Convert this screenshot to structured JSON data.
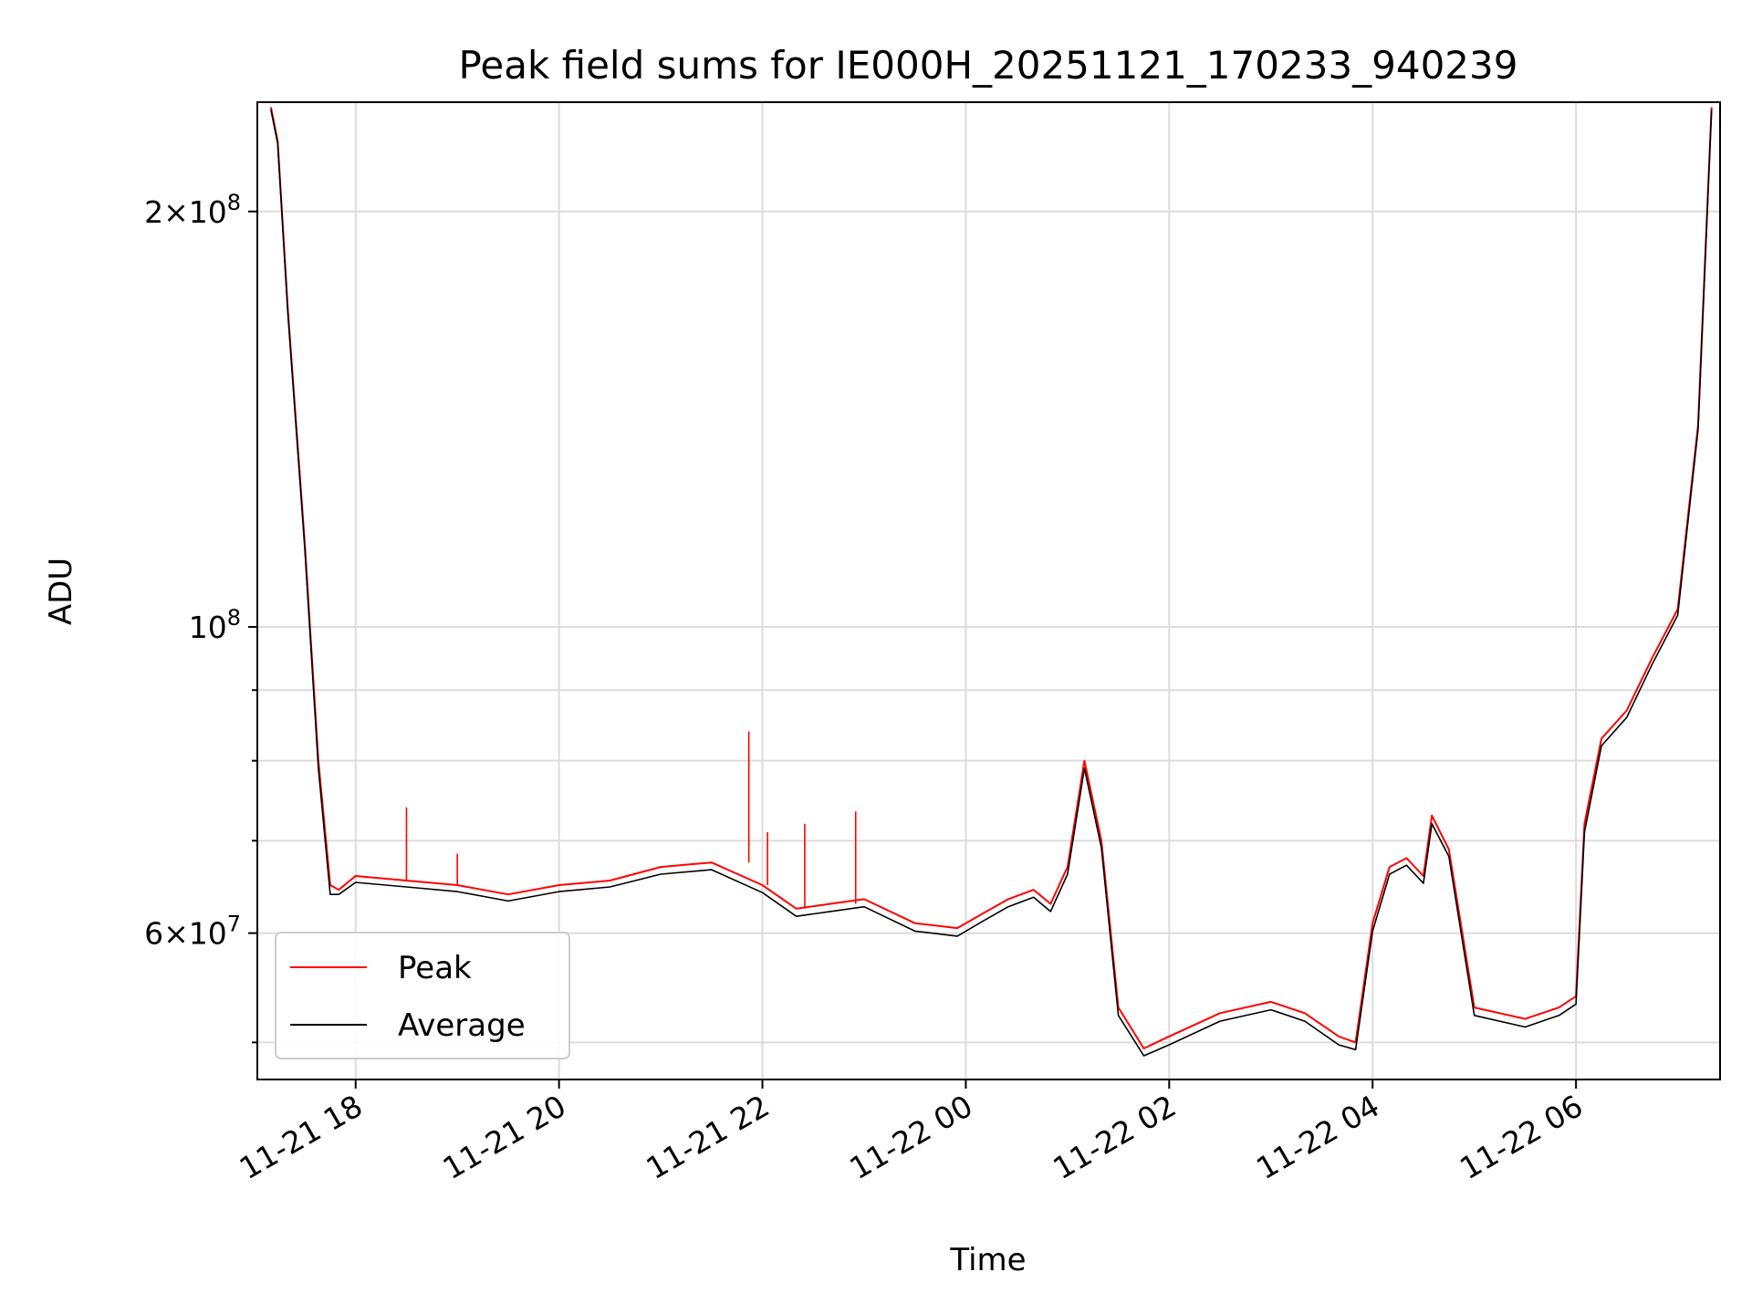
{
  "chart_data": {
    "type": "line",
    "title": "Peak field sums for IE000H_20251121_170233_940239",
    "xlabel": "Time",
    "ylabel": "ADU",
    "x_tick_labels": [
      "11-21 18",
      "11-21 20",
      "11-21 22",
      "11-22 00",
      "11-22 02",
      "11-22 04",
      "11-22 06"
    ],
    "x_ticks": [
      "2025-11-21 18:00",
      "2025-11-21 20:00",
      "2025-11-21 22:00",
      "2025-11-22 00:00",
      "2025-11-22 02:00",
      "2025-11-22 04:00",
      "2025-11-22 06:00"
    ],
    "xlim": [
      "2025-11-21 17:02",
      "2025-11-22 07:25"
    ],
    "yscale": "log",
    "ylim": [
      47000000,
      240000000
    ],
    "y_major_ticks": [
      {
        "value": 200000000,
        "mantissa": "2",
        "exponent": "8"
      },
      {
        "value": 100000000,
        "mantissa": "",
        "exponent": "8"
      },
      {
        "value": 60000000,
        "mantissa": "6",
        "exponent": "7"
      }
    ],
    "y_minor_ticks": [
      50000000,
      70000000,
      80000000,
      90000000
    ],
    "grid": true,
    "legend_position": "lower left",
    "series": [
      {
        "name": "Peak",
        "color": "#ff0000",
        "x": [
          "2025-11-21 17:10",
          "2025-11-21 17:14",
          "2025-11-21 17:20",
          "2025-11-21 17:30",
          "2025-11-21 17:38",
          "2025-11-21 17:45",
          "2025-11-21 17:50",
          "2025-11-21 18:00",
          "2025-11-21 18:30",
          "2025-11-21 19:00",
          "2025-11-21 19:30",
          "2025-11-21 20:00",
          "2025-11-21 20:30",
          "2025-11-21 21:00",
          "2025-11-21 21:30",
          "2025-11-21 22:00",
          "2025-11-21 22:20",
          "2025-11-21 22:40",
          "2025-11-21 23:00",
          "2025-11-21 23:30",
          "2025-11-21 23:55",
          "2025-11-22 00:10",
          "2025-11-22 00:25",
          "2025-11-22 00:40",
          "2025-11-22 00:50",
          "2025-11-22 01:00",
          "2025-11-22 01:10",
          "2025-11-22 01:20",
          "2025-11-22 01:30",
          "2025-11-22 01:45",
          "2025-11-22 02:00",
          "2025-11-22 02:30",
          "2025-11-22 03:00",
          "2025-11-22 03:20",
          "2025-11-22 03:40",
          "2025-11-22 03:50",
          "2025-11-22 04:00",
          "2025-11-22 04:10",
          "2025-11-22 04:20",
          "2025-11-22 04:30",
          "2025-11-22 04:35",
          "2025-11-22 04:45",
          "2025-11-22 05:00",
          "2025-11-22 05:30",
          "2025-11-22 05:50",
          "2025-11-22 06:00",
          "2025-11-22 06:05",
          "2025-11-22 06:15",
          "2025-11-22 06:30",
          "2025-11-22 06:45",
          "2025-11-22 07:00",
          "2025-11-22 07:12",
          "2025-11-22 07:20"
        ],
        "values": [
          238000000,
          225000000,
          170000000,
          115000000,
          80000000,
          65000000,
          64500000,
          66000000,
          65500000,
          65000000,
          64000000,
          65000000,
          65500000,
          67000000,
          67500000,
          65000000,
          62500000,
          63000000,
          63500000,
          61000000,
          60500000,
          62000000,
          63500000,
          64500000,
          63000000,
          67000000,
          80000000,
          70000000,
          53000000,
          49500000,
          50500000,
          52500000,
          53500000,
          52500000,
          50500000,
          50000000,
          61000000,
          67000000,
          68000000,
          66000000,
          73000000,
          69000000,
          53000000,
          52000000,
          53000000,
          54000000,
          72000000,
          83000000,
          87000000,
          95000000,
          103000000,
          140000000,
          238000000
        ],
        "spikes": [
          {
            "x": "2025-11-21 18:30",
            "value": 74000000
          },
          {
            "x": "2025-11-21 19:00",
            "value": 68500000
          },
          {
            "x": "2025-11-21 21:52",
            "value": 84000000
          },
          {
            "x": "2025-11-21 22:03",
            "value": 71000000
          },
          {
            "x": "2025-11-21 22:25",
            "value": 72000000
          },
          {
            "x": "2025-11-21 22:55",
            "value": 73500000
          }
        ]
      },
      {
        "name": "Average",
        "color": "#000000",
        "x": [
          "2025-11-21 17:10",
          "2025-11-21 17:14",
          "2025-11-21 17:20",
          "2025-11-21 17:30",
          "2025-11-21 17:38",
          "2025-11-21 17:45",
          "2025-11-21 17:50",
          "2025-11-21 18:00",
          "2025-11-21 18:30",
          "2025-11-21 19:00",
          "2025-11-21 19:30",
          "2025-11-21 20:00",
          "2025-11-21 20:30",
          "2025-11-21 21:00",
          "2025-11-21 21:30",
          "2025-11-21 22:00",
          "2025-11-21 22:20",
          "2025-11-21 22:40",
          "2025-11-21 23:00",
          "2025-11-21 23:30",
          "2025-11-21 23:55",
          "2025-11-22 00:10",
          "2025-11-22 00:25",
          "2025-11-22 00:40",
          "2025-11-22 00:50",
          "2025-11-22 01:00",
          "2025-11-22 01:10",
          "2025-11-22 01:20",
          "2025-11-22 01:30",
          "2025-11-22 01:45",
          "2025-11-22 02:00",
          "2025-11-22 02:30",
          "2025-11-22 03:00",
          "2025-11-22 03:20",
          "2025-11-22 03:40",
          "2025-11-22 03:50",
          "2025-11-22 04:00",
          "2025-11-22 04:10",
          "2025-11-22 04:20",
          "2025-11-22 04:30",
          "2025-11-22 04:35",
          "2025-11-22 04:45",
          "2025-11-22 05:00",
          "2025-11-22 05:30",
          "2025-11-22 05:50",
          "2025-11-22 06:00",
          "2025-11-22 06:05",
          "2025-11-22 06:15",
          "2025-11-22 06:30",
          "2025-11-22 06:45",
          "2025-11-22 07:00",
          "2025-11-22 07:12",
          "2025-11-22 07:20"
        ],
        "values": [
          237000000,
          224000000,
          169000000,
          114000000,
          79000000,
          64000000,
          64000000,
          65300000,
          64800000,
          64300000,
          63300000,
          64300000,
          64800000,
          66200000,
          66700000,
          64200000,
          61700000,
          62200000,
          62700000,
          60200000,
          59700000,
          61200000,
          62700000,
          63700000,
          62200000,
          66200000,
          79000000,
          69200000,
          52300000,
          48900000,
          49800000,
          51800000,
          52800000,
          51800000,
          49800000,
          49400000,
          60200000,
          66200000,
          67200000,
          65200000,
          72000000,
          68200000,
          52300000,
          51300000,
          52300000,
          53300000,
          71000000,
          82000000,
          86000000,
          94000000,
          102000000,
          139000000,
          237000000
        ]
      }
    ]
  }
}
